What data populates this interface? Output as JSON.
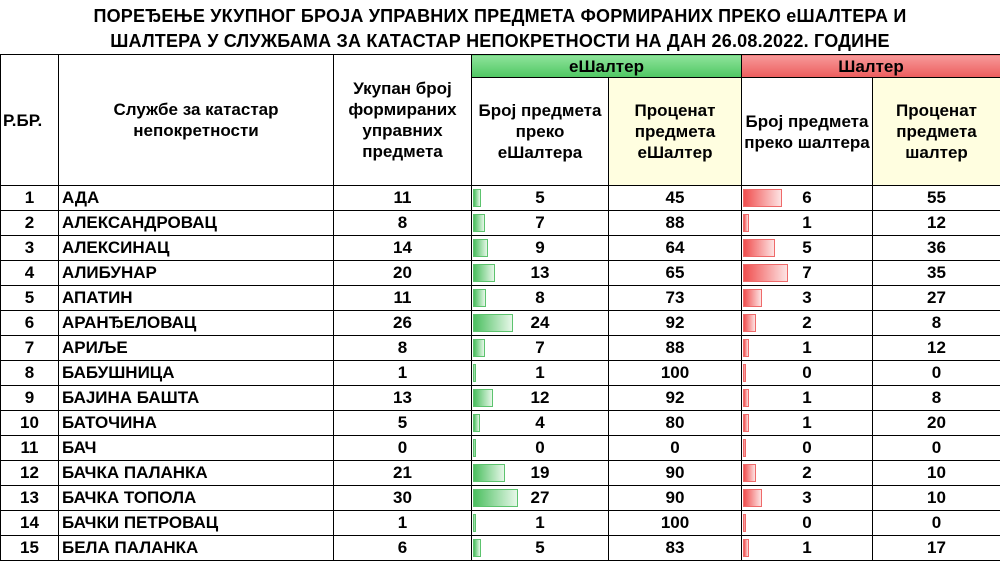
{
  "title": {
    "line1": "ПОРЕЂЕЊЕ УКУПНОГ БРОЈА УПРАВНИХ ПРЕДМЕТА ФОРМИРАНИХ ПРЕКО еШАЛТЕРА И",
    "line2": "ШАЛТЕРА У СЛУЖБАМА ЗА КАТАСТАР НЕПОКРЕТНОСТИ НА ДАН 26.08.2022. ГОДИНЕ"
  },
  "headers": {
    "rbr": "Р.БР.",
    "office": "Службе за катастар непокретности",
    "total": "Укупан број формираних управних предмета",
    "eshalter_group": "еШалтер",
    "eshalter_count": "Број предмета преко еШалтера",
    "eshalter_percent": "Проценат предмета еШалтер",
    "shalter_group": "Шалтер",
    "shalter_count": "Број предмета преко шалтера",
    "shalter_percent": "Проценат предмета шалтер"
  },
  "colors": {
    "eshalter_header": "#5fcf72",
    "shalter_header": "#ef6b6b",
    "percent_header_bg": "#fffee0",
    "green_bar": "#4cbf60",
    "red_bar": "#f04f4f"
  },
  "rows": [
    {
      "rbr": "1",
      "name": "АДА",
      "total": "11",
      "e_count": "5",
      "e_pct": "45",
      "s_count": "6",
      "s_pct": "55"
    },
    {
      "rbr": "2",
      "name": "АЛЕКСАНДРОВАЦ",
      "total": "8",
      "e_count": "7",
      "e_pct": "88",
      "s_count": "1",
      "s_pct": "12"
    },
    {
      "rbr": "3",
      "name": "АЛЕКСИНАЦ",
      "total": "14",
      "e_count": "9",
      "e_pct": "64",
      "s_count": "5",
      "s_pct": "36"
    },
    {
      "rbr": "4",
      "name": "АЛИБУНАР",
      "total": "20",
      "e_count": "13",
      "e_pct": "65",
      "s_count": "7",
      "s_pct": "35"
    },
    {
      "rbr": "5",
      "name": "АПАТИН",
      "total": "11",
      "e_count": "8",
      "e_pct": "73",
      "s_count": "3",
      "s_pct": "27"
    },
    {
      "rbr": "6",
      "name": "АРАНЂЕЛОВАЦ",
      "total": "26",
      "e_count": "24",
      "e_pct": "92",
      "s_count": "2",
      "s_pct": "8"
    },
    {
      "rbr": "7",
      "name": "АРИЉЕ",
      "total": "8",
      "e_count": "7",
      "e_pct": "88",
      "s_count": "1",
      "s_pct": "12"
    },
    {
      "rbr": "8",
      "name": "БАБУШНИЦА",
      "total": "1",
      "e_count": "1",
      "e_pct": "100",
      "s_count": "0",
      "s_pct": "0"
    },
    {
      "rbr": "9",
      "name": "БАЈИНА БАШТА",
      "total": "13",
      "e_count": "12",
      "e_pct": "92",
      "s_count": "1",
      "s_pct": "8"
    },
    {
      "rbr": "10",
      "name": "БАТОЧИНА",
      "total": "5",
      "e_count": "4",
      "e_pct": "80",
      "s_count": "1",
      "s_pct": "20"
    },
    {
      "rbr": "11",
      "name": "БАЧ",
      "total": "0",
      "e_count": "0",
      "e_pct": "0",
      "s_count": "0",
      "s_pct": "0"
    },
    {
      "rbr": "12",
      "name": "БАЧКА ПАЛАНКА",
      "total": "21",
      "e_count": "19",
      "e_pct": "90",
      "s_count": "2",
      "s_pct": "10"
    },
    {
      "rbr": "13",
      "name": "БАЧКА ТОПОЛА",
      "total": "30",
      "e_count": "27",
      "e_pct": "90",
      "s_count": "3",
      "s_pct": "10"
    },
    {
      "rbr": "14",
      "name": "БАЧКИ ПЕТРОВАЦ",
      "total": "1",
      "e_count": "1",
      "e_pct": "100",
      "s_count": "0",
      "s_pct": "0"
    },
    {
      "rbr": "15",
      "name": "БЕЛА ПАЛАНКА",
      "total": "6",
      "e_count": "5",
      "e_pct": "83",
      "s_count": "1",
      "s_pct": "17"
    }
  ]
}
